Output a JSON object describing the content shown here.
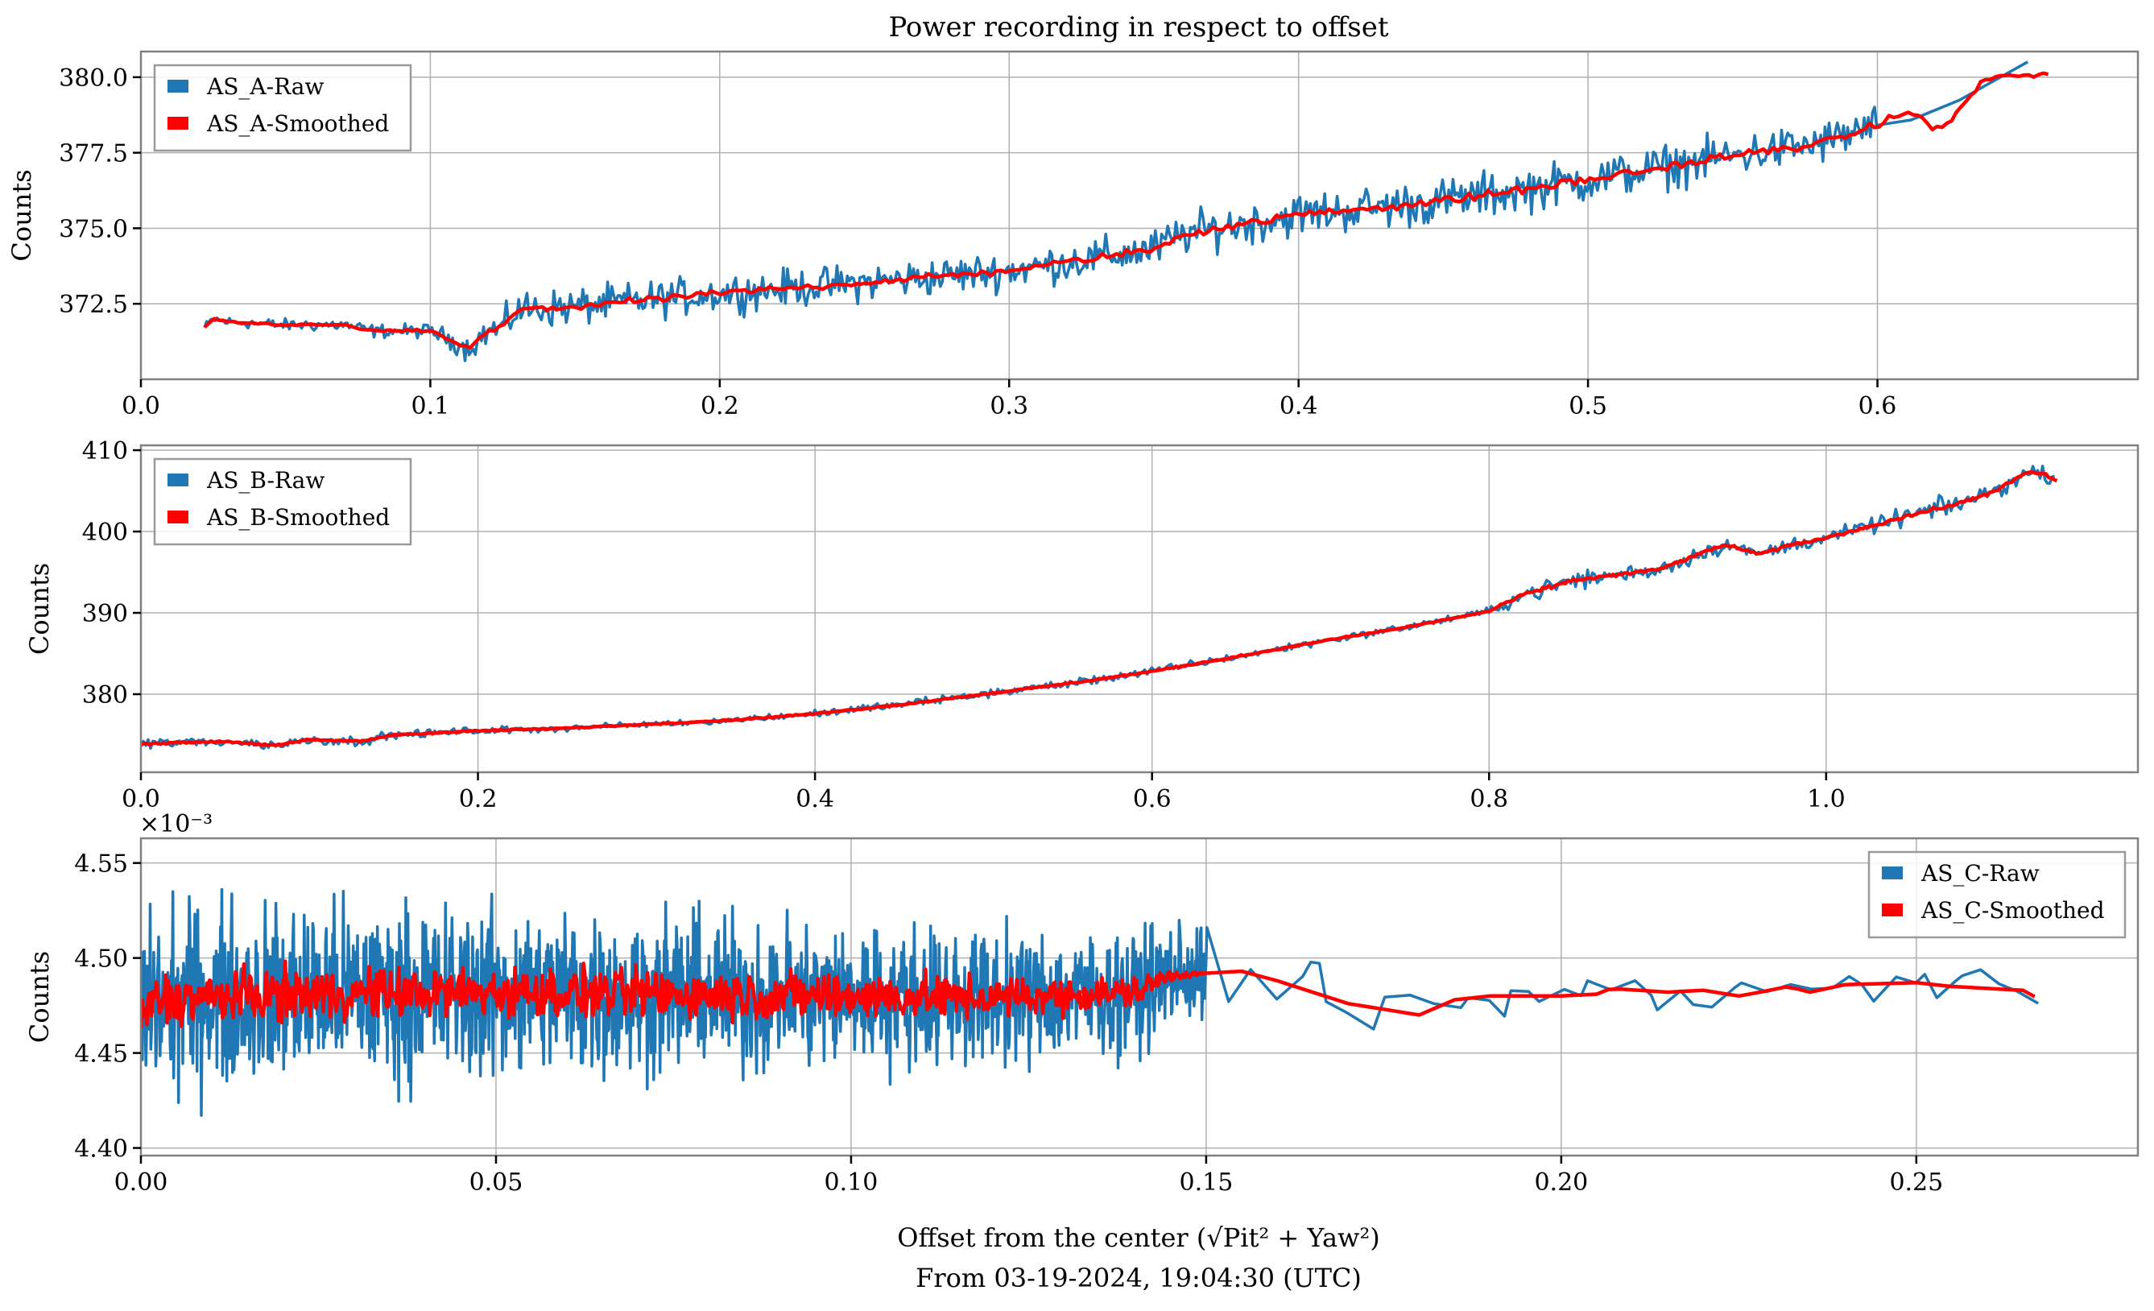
{
  "figure": {
    "title": "Power recording in respect to offset",
    "xlabel_line1": "Offset from the center (√Pit² + Yaw²)",
    "xlabel_line2": "From 03-19-2024, 19:04:30 (UTC)"
  },
  "colors": {
    "raw": "#1f77b4",
    "smoothed": "#ff0000"
  },
  "chart_data": [
    {
      "type": "line",
      "id": "AS_A",
      "title": "Power recording in respect to offset",
      "xlabel": "",
      "ylabel": "Counts",
      "xlim": [
        0.0,
        0.69
      ],
      "ylim": [
        370.0,
        380.85
      ],
      "xticks": [
        0.0,
        0.1,
        0.2,
        0.3,
        0.4,
        0.5,
        0.6
      ],
      "xtick_labels": [
        "0.0",
        "0.1",
        "0.2",
        "0.3",
        "0.4",
        "0.5",
        "0.6"
      ],
      "yticks": [
        372.5,
        375.0,
        377.5,
        380.0
      ],
      "ytick_labels": [
        "372.5",
        "375.0",
        "377.5",
        "380.0"
      ],
      "offset_text": "",
      "grid": true,
      "legend": {
        "position": "upper-left",
        "entries": [
          "AS_A-Raw",
          "AS_A-Smoothed"
        ]
      },
      "series": [
        {
          "name": "AS_A-Smoothed",
          "x": [
            0.022,
            0.025,
            0.03,
            0.05,
            0.07,
            0.08,
            0.09,
            0.1,
            0.105,
            0.113,
            0.12,
            0.125,
            0.13,
            0.15,
            0.2,
            0.25,
            0.3,
            0.35,
            0.36,
            0.4,
            0.45,
            0.5,
            0.55,
            0.58,
            0.6,
            0.61,
            0.62,
            0.625,
            0.63,
            0.635,
            0.64,
            0.659
          ],
          "y": [
            371.7,
            372.0,
            371.9,
            371.8,
            371.8,
            371.6,
            371.6,
            371.6,
            371.4,
            371.0,
            371.6,
            371.7,
            372.3,
            372.4,
            372.85,
            373.2,
            373.6,
            374.3,
            374.8,
            375.45,
            375.9,
            376.6,
            377.4,
            377.8,
            378.4,
            378.9,
            378.3,
            378.5,
            379.1,
            379.8,
            380.0,
            380.1
          ]
        },
        {
          "name": "AS_A-Raw",
          "noise_amplitude": {
            "x": [
              0.022,
              0.1,
              0.13,
              0.3,
              0.45,
              0.6,
              0.66
            ],
            "amp": [
              0.25,
              0.35,
              0.9,
              0.9,
              1.1,
              1.0,
              0.6
            ]
          },
          "points_per_unit_x": 1400,
          "sparse_after": 0.6
        }
      ]
    },
    {
      "type": "line",
      "id": "AS_B",
      "xlabel": "",
      "ylabel": "Counts",
      "xlim": [
        0.0,
        1.185
      ],
      "ylim": [
        370.4,
        410.6
      ],
      "xticks": [
        0.0,
        0.2,
        0.4,
        0.6,
        0.8,
        1.0
      ],
      "xtick_labels": [
        "0.0",
        "0.2",
        "0.4",
        "0.6",
        "0.8",
        "1.0"
      ],
      "yticks": [
        380,
        390,
        400,
        410
      ],
      "ytick_labels": [
        "380",
        "390",
        "400",
        "410"
      ],
      "offset_text": "",
      "grid": true,
      "legend": {
        "position": "upper-left",
        "entries": [
          "AS_B-Raw",
          "AS_B-Smoothed"
        ]
      },
      "series": [
        {
          "name": "AS_B-Smoothed",
          "x": [
            0.0,
            0.05,
            0.08,
            0.1,
            0.13,
            0.15,
            0.2,
            0.25,
            0.3,
            0.35,
            0.4,
            0.45,
            0.5,
            0.55,
            0.6,
            0.65,
            0.7,
            0.75,
            0.8,
            0.82,
            0.85,
            0.9,
            0.94,
            0.96,
            0.98,
            1.0,
            1.05,
            1.08,
            1.1,
            1.12,
            1.13,
            1.137
          ],
          "y": [
            373.9,
            374.2,
            373.7,
            374.4,
            374.2,
            375.0,
            375.5,
            375.8,
            376.3,
            376.8,
            377.6,
            378.7,
            380.0,
            381.3,
            382.8,
            384.6,
            386.5,
            388.2,
            390.2,
            392.2,
            394.0,
            395.3,
            398.4,
            397.2,
            398.4,
            399.2,
            402.0,
            403.5,
            405.0,
            407.3,
            407.0,
            406.2
          ]
        },
        {
          "name": "AS_B-Raw",
          "noise_amplitude": {
            "x": [
              0.0,
              0.3,
              0.5,
              0.8,
              0.82,
              1.0,
              1.06,
              1.137
            ],
            "amp": [
              1.0,
              0.5,
              0.8,
              0.6,
              1.8,
              1.2,
              1.8,
              1.2
            ]
          },
          "points_per_unit_x": 700,
          "sparse_after": 2
        }
      ]
    },
    {
      "type": "line",
      "id": "AS_C",
      "xlabel": "Offset from the center (√Pit² + Yaw²)",
      "ylabel": "Counts",
      "xlim": [
        0.0,
        0.2812
      ],
      "ylim": [
        4.396,
        4.563
      ],
      "xticks": [
        0.0,
        0.05,
        0.1,
        0.15,
        0.2,
        0.25
      ],
      "xtick_labels": [
        "0.00",
        "0.05",
        "0.10",
        "0.15",
        "0.20",
        "0.25"
      ],
      "yticks": [
        4.4,
        4.45,
        4.5,
        4.55
      ],
      "ytick_labels": [
        "4.40",
        "4.45",
        "4.50",
        "4.55"
      ],
      "offset_text": "×10⁻³",
      "grid": true,
      "legend": {
        "position": "upper-right",
        "entries": [
          "AS_C-Raw",
          "AS_C-Smoothed"
        ]
      },
      "series": [
        {
          "name": "AS_C-Smoothed",
          "x": [
            0.0,
            0.002,
            0.02,
            0.05,
            0.08,
            0.1,
            0.12,
            0.14,
            0.145,
            0.15,
            0.155,
            0.16,
            0.165,
            0.17,
            0.175,
            0.18,
            0.185,
            0.19,
            0.2,
            0.205,
            0.207,
            0.215,
            0.22,
            0.225,
            0.228,
            0.232,
            0.235,
            0.24,
            0.25,
            0.255,
            0.265,
            0.268
          ],
          "y": [
            4.468,
            4.478,
            4.481,
            4.482,
            4.481,
            4.48,
            4.479,
            4.482,
            4.491,
            4.492,
            4.493,
            4.488,
            4.482,
            4.476,
            4.473,
            4.47,
            4.478,
            4.48,
            4.48,
            4.481,
            4.484,
            4.482,
            4.483,
            4.48,
            4.482,
            4.485,
            4.482,
            4.486,
            4.487,
            4.485,
            4.483,
            4.477
          ]
        },
        {
          "name": "AS_C-Raw",
          "noise_amplitude": {
            "x": [
              0.0,
              0.05,
              0.1,
              0.14,
              0.17,
              0.2,
              0.268
            ],
            "amp": [
              0.07,
              0.065,
              0.055,
              0.045,
              0.025,
              0.02,
              0.015
            ]
          },
          "smoothed_noise_amplitude": {
            "x": [
              0.0,
              0.1,
              0.14,
              0.15
            ],
            "amp": [
              0.02,
              0.018,
              0.012,
              0.0
            ]
          },
          "points_per_unit_x": 10000,
          "sparse_after": 0.15
        }
      ]
    }
  ]
}
